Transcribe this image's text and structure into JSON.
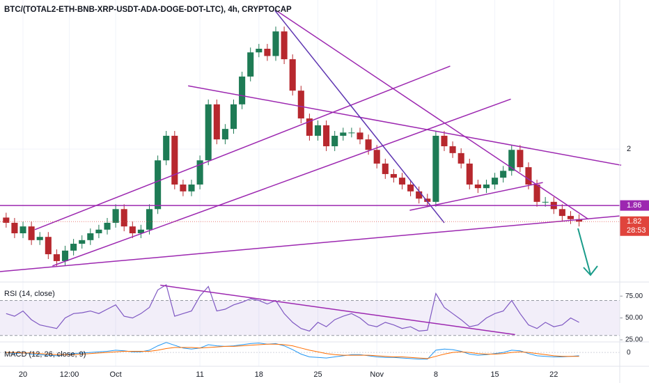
{
  "chart_data": {
    "type": "candlestick",
    "title": "BTC/(TOTAL2-ETH-BNB-XRP-USDT-ADA-DOGE-DOT-LTC), 4h, CRYPTOCAP",
    "colors": {
      "up": "#1e7b55",
      "down": "#b7282e"
    },
    "x": [
      -2,
      -1,
      0,
      1,
      2,
      3,
      4,
      5,
      6,
      7,
      8,
      9,
      10,
      11,
      12,
      13,
      14,
      15,
      16,
      17,
      18,
      19,
      20,
      21,
      22,
      23,
      24,
      25,
      26,
      27,
      28,
      29,
      30,
      31,
      32,
      33,
      34,
      35,
      36,
      37,
      38,
      39,
      40,
      41,
      42,
      43,
      44,
      45,
      46,
      47,
      48,
      49,
      50,
      51,
      52,
      53,
      54,
      55,
      56,
      57,
      58,
      59,
      60,
      61,
      62,
      63,
      64,
      65,
      66
    ],
    "candles": [
      [
        1.83,
        1.842,
        1.805,
        1.817
      ],
      [
        1.817,
        1.829,
        1.779,
        1.791
      ],
      [
        1.791,
        1.82,
        1.779,
        1.808
      ],
      [
        1.808,
        1.82,
        1.762,
        1.774
      ],
      [
        1.774,
        1.794,
        1.762,
        1.782
      ],
      [
        1.782,
        1.794,
        1.727,
        1.739
      ],
      [
        1.739,
        1.751,
        1.71,
        1.722
      ],
      [
        1.722,
        1.76,
        1.71,
        1.748
      ],
      [
        1.748,
        1.777,
        1.736,
        1.765
      ],
      [
        1.765,
        1.786,
        1.753,
        1.774
      ],
      [
        1.774,
        1.803,
        1.762,
        1.791
      ],
      [
        1.791,
        1.812,
        1.779,
        1.8
      ],
      [
        1.8,
        1.829,
        1.788,
        1.817
      ],
      [
        1.817,
        1.863,
        1.805,
        1.851
      ],
      [
        1.851,
        1.863,
        1.796,
        1.808
      ],
      [
        1.808,
        1.82,
        1.779,
        1.791
      ],
      [
        1.791,
        1.812,
        1.779,
        1.8
      ],
      [
        1.8,
        1.863,
        1.788,
        1.851
      ],
      [
        1.851,
        1.984,
        1.839,
        1.972
      ],
      [
        1.972,
        2.045,
        1.96,
        2.033
      ],
      [
        2.033,
        2.045,
        1.9,
        1.912
      ],
      [
        1.912,
        1.924,
        1.883,
        1.895
      ],
      [
        1.895,
        1.924,
        1.883,
        1.912
      ],
      [
        1.912,
        1.984,
        1.9,
        1.972
      ],
      [
        1.972,
        2.123,
        1.96,
        2.111
      ],
      [
        2.111,
        2.123,
        2.012,
        2.024
      ],
      [
        2.024,
        2.062,
        2.012,
        2.05
      ],
      [
        2.05,
        2.123,
        2.038,
        2.111
      ],
      [
        2.111,
        2.192,
        2.099,
        2.18
      ],
      [
        2.18,
        2.252,
        2.168,
        2.24
      ],
      [
        2.24,
        2.261,
        2.228,
        2.249
      ],
      [
        2.249,
        2.261,
        2.219,
        2.231
      ],
      [
        2.231,
        2.304,
        2.219,
        2.292
      ],
      [
        2.292,
        2.304,
        2.211,
        2.223
      ],
      [
        2.223,
        2.235,
        2.133,
        2.145
      ],
      [
        2.145,
        2.157,
        2.064,
        2.076
      ],
      [
        2.076,
        2.088,
        2.021,
        2.033
      ],
      [
        2.033,
        2.071,
        2.021,
        2.059
      ],
      [
        2.059,
        2.071,
        1.995,
        2.007
      ],
      [
        2.007,
        2.045,
        1.995,
        2.033
      ],
      [
        2.033,
        2.053,
        2.021,
        2.041
      ],
      [
        2.041,
        2.053,
        2.029,
        2.041
      ],
      [
        2.041,
        2.053,
        2.012,
        2.024
      ],
      [
        2.024,
        2.036,
        1.986,
        1.998
      ],
      [
        1.998,
        2.01,
        1.952,
        1.964
      ],
      [
        1.964,
        1.976,
        1.926,
        1.938
      ],
      [
        1.938,
        1.95,
        1.917,
        1.929
      ],
      [
        1.929,
        1.941,
        1.9,
        1.912
      ],
      [
        1.912,
        1.924,
        1.883,
        1.895
      ],
      [
        1.895,
        1.907,
        1.865,
        1.877
      ],
      [
        1.877,
        1.889,
        1.857,
        1.869
      ],
      [
        1.869,
        2.045,
        1.857,
        2.033
      ],
      [
        2.033,
        2.045,
        1.995,
        2.007
      ],
      [
        2.007,
        2.019,
        1.978,
        1.99
      ],
      [
        1.99,
        2.002,
        1.952,
        1.964
      ],
      [
        1.964,
        1.976,
        1.9,
        1.912
      ],
      [
        1.912,
        1.924,
        1.891,
        1.903
      ],
      [
        1.903,
        1.924,
        1.891,
        1.912
      ],
      [
        1.912,
        1.941,
        1.9,
        1.929
      ],
      [
        1.929,
        1.958,
        1.917,
        1.946
      ],
      [
        1.946,
        2.01,
        1.934,
        1.998
      ],
      [
        1.998,
        2.01,
        1.943,
        1.955
      ],
      [
        1.955,
        1.967,
        1.9,
        1.912
      ],
      [
        1.912,
        1.924,
        1.857,
        1.869
      ],
      [
        1.869,
        1.881,
        1.857,
        1.869
      ],
      [
        1.869,
        1.881,
        1.839,
        1.851
      ],
      [
        1.851,
        1.863,
        1.822,
        1.834
      ],
      [
        1.834,
        1.846,
        1.814,
        1.826
      ],
      [
        1.826,
        1.838,
        1.808,
        1.82
      ]
    ],
    "xlim": [
      -2.73,
      70.83
    ],
    "xticks": [
      {
        "value": 0,
        "label": "20"
      },
      {
        "value": 5.5,
        "label": "12:00"
      },
      {
        "value": 11,
        "label": "Oct"
      },
      {
        "value": 21,
        "label": "11"
      },
      {
        "value": 28,
        "label": "18"
      },
      {
        "value": 35,
        "label": "25"
      },
      {
        "value": 42,
        "label": "Nov"
      },
      {
        "value": 49,
        "label": "8"
      },
      {
        "value": 56,
        "label": "15"
      },
      {
        "value": 63,
        "label": "22"
      }
    ],
    "ylim": [
      1.67,
      2.37
    ],
    "yticks": [
      2
    ],
    "grid": true,
    "price_lines": [
      {
        "value": 1.86,
        "label": "1.86",
        "color": "#9c27b0"
      },
      {
        "value": 1.82,
        "label": "1.82",
        "color": "#e0443c",
        "countdown": "28:53"
      }
    ],
    "drawings": [
      {
        "x": [
          -2.73,
          70.8
        ],
        "y": [
          1.696,
          1.834
        ],
        "color": "#9c27b0"
      },
      {
        "x": [
          -2.73,
          70.8
        ],
        "y": [
          1.86,
          1.86
        ],
        "color": "#9c27b0"
      },
      {
        "x": [
          1.4,
          50.7
        ],
        "y": [
          1.8,
          2.206
        ],
        "color": "#9c27b0"
      },
      {
        "x": [
          3.5,
          57.9
        ],
        "y": [
          1.71,
          2.124
        ],
        "color": "#9c27b0"
      },
      {
        "x": [
          19.6,
          71
        ],
        "y": [
          2.157,
          1.96
        ],
        "color": "#9c27b0"
      },
      {
        "x": [
          30.2,
          67.1
        ],
        "y": [
          2.342,
          1.826
        ],
        "color": "#9c27b0"
      },
      {
        "x": [
          29.9,
          50
        ],
        "y": [
          2.344,
          1.817
        ],
        "color": "#5e35b1"
      },
      {
        "x": [
          45.9,
          61.7
        ],
        "y": [
          1.848,
          1.917
        ],
        "color": "#9c27b0"
      }
    ],
    "rsi": {
      "title": "RSI (14, close)",
      "color": "#7e57c2",
      "values": [
        55,
        52,
        58,
        48,
        42,
        40,
        38,
        50,
        55,
        56,
        58,
        55,
        60,
        65,
        52,
        50,
        55,
        62,
        82,
        88,
        52,
        55,
        58,
        75,
        86,
        58,
        60,
        65,
        68,
        72,
        70,
        66,
        70,
        55,
        45,
        38,
        35,
        45,
        40,
        48,
        52,
        55,
        50,
        42,
        40,
        45,
        42,
        38,
        40,
        35,
        36,
        78,
        62,
        55,
        48,
        40,
        42,
        50,
        55,
        58,
        70,
        55,
        42,
        38,
        45,
        40,
        42,
        50,
        45
      ],
      "band": [
        30,
        70
      ],
      "ylim": [
        22.6,
        91.1
      ],
      "yticks": [
        {
          "value": 75,
          "label": "75.00"
        },
        {
          "value": 50,
          "label": "50.00"
        },
        {
          "value": 25,
          "label": "25.00"
        }
      ],
      "drawings": [
        {
          "x": [
            16.3,
            58.4
          ],
          "y": [
            87.5,
            31
          ],
          "color": "#9c27b0"
        }
      ]
    },
    "macd": {
      "title": "MACD (12, 26, close, 9)",
      "ylim": [
        -0.025,
        0.019
      ],
      "yticks": [
        0
      ],
      "series": [
        {
          "color": "#2196f3",
          "values": [
            0,
            -0.002,
            -0.001,
            -0.003,
            -0.004,
            -0.005,
            -0.006,
            -0.004,
            -0.002,
            -0.001,
            0,
            0.001,
            0.002,
            0.004,
            0.003,
            0.001,
            0.001,
            0.004,
            0.012,
            0.018,
            0.013,
            0.008,
            0.006,
            0.008,
            0.014,
            0.012,
            0.011,
            0.012,
            0.014,
            0.016,
            0.017,
            0.015,
            0.016,
            0.012,
            0.005,
            -0.003,
            -0.008,
            -0.009,
            -0.01,
            -0.008,
            -0.006,
            -0.004,
            -0.004,
            -0.006,
            -0.008,
            -0.009,
            -0.009,
            -0.01,
            -0.011,
            -0.012,
            -0.012,
            0.004,
            0.006,
            0.005,
            0.002,
            -0.003,
            -0.005,
            -0.004,
            -0.002,
            0,
            0.004,
            0.003,
            -0.002,
            -0.006,
            -0.007,
            -0.008,
            -0.008,
            -0.007,
            -0.006
          ]
        },
        {
          "color": "#ff6d00",
          "values": [
            0,
            0,
            -0.001,
            -0.001,
            -0.002,
            -0.003,
            -0.004,
            -0.004,
            -0.004,
            -0.003,
            -0.002,
            -0.001,
            0,
            0.001,
            0.002,
            0.002,
            0.002,
            0.002,
            0.004,
            0.007,
            0.009,
            0.009,
            0.009,
            0.008,
            0.009,
            0.01,
            0.011,
            0.011,
            0.012,
            0.013,
            0.014,
            0.015,
            0.015,
            0.014,
            0.012,
            0.008,
            0.004,
            0.001,
            -0.002,
            -0.004,
            -0.005,
            -0.005,
            -0.005,
            -0.005,
            -0.006,
            -0.007,
            -0.008,
            -0.008,
            -0.009,
            -0.01,
            -0.011,
            -0.007,
            -0.003,
            0,
            0.001,
            0,
            -0.002,
            -0.003,
            -0.003,
            -0.002,
            0,
            0.001,
            0,
            -0.002,
            -0.004,
            -0.006,
            -0.007,
            -0.007,
            -0.007
          ]
        }
      ]
    }
  }
}
